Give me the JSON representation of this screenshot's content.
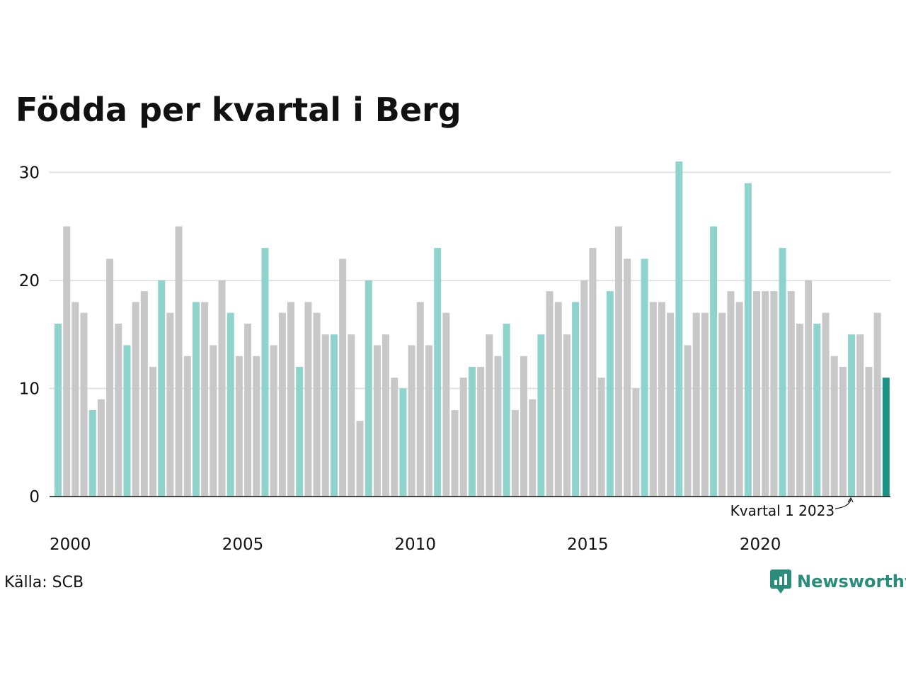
{
  "chart_data": {
    "type": "bar",
    "title": "Födda per kvartal i Berg",
    "xlabel": "",
    "ylabel": "",
    "ylim": [
      0,
      31
    ],
    "grid": true,
    "yticks": [
      0,
      10,
      20,
      30
    ],
    "xticks": [
      "2000",
      "2005",
      "2010",
      "2015",
      "2020"
    ],
    "start_year": 2000,
    "highlight_quarter": 1,
    "colors": {
      "highlight_q1": "#8ed4cd",
      "other": "#c8c8c8",
      "latest": "#1a9585",
      "grid": "#e3e3e3",
      "axis": "#111111"
    },
    "values": [
      16,
      25,
      18,
      17,
      8,
      9,
      22,
      16,
      14,
      18,
      19,
      12,
      20,
      17,
      25,
      13,
      18,
      18,
      14,
      20,
      17,
      13,
      16,
      13,
      23,
      14,
      17,
      18,
      12,
      18,
      17,
      15,
      15,
      22,
      15,
      7,
      20,
      14,
      15,
      11,
      10,
      14,
      18,
      14,
      23,
      17,
      8,
      11,
      12,
      12,
      15,
      13,
      16,
      8,
      13,
      9,
      15,
      19,
      18,
      15,
      18,
      20,
      23,
      11,
      19,
      25,
      22,
      10,
      22,
      18,
      18,
      17,
      31,
      14,
      17,
      17,
      25,
      17,
      19,
      18,
      29,
      19,
      19,
      19,
      23,
      19,
      16,
      20,
      16,
      17,
      13,
      12,
      15,
      15,
      12,
      17,
      11
    ],
    "annotation": {
      "text": "Kvartal 1 2023",
      "index": 92
    }
  },
  "source": "Källa: SCB",
  "logo": {
    "text": "Newsworthy",
    "icon": "newsworthy-logo-icon",
    "color": "#2a8c7b"
  }
}
